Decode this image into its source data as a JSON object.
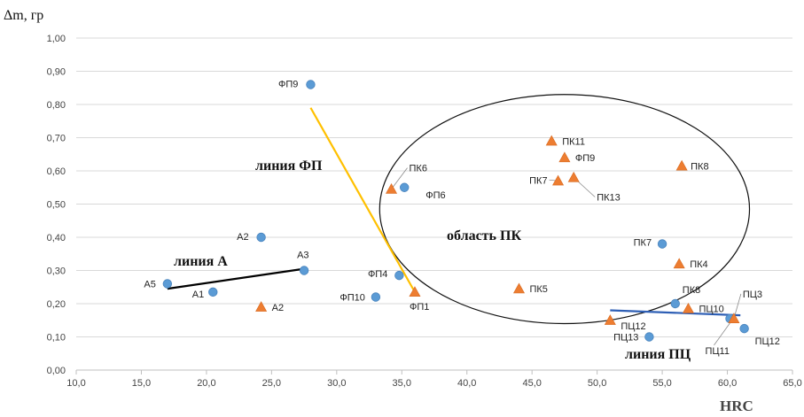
{
  "chart_data": {
    "type": "scatter",
    "ylabel": "Δm, гр",
    "xlabel": "HRC",
    "xlim": [
      10,
      65
    ],
    "ylim": [
      0,
      1
    ],
    "x_ticks": [
      "10,0",
      "15,0",
      "20,0",
      "25,0",
      "30,0",
      "35,0",
      "40,0",
      "45,0",
      "50,0",
      "55,0",
      "60,0",
      "65,0"
    ],
    "y_ticks": [
      "0,00",
      "0,10",
      "0,20",
      "0,30",
      "0,40",
      "0,50",
      "0,60",
      "0,70",
      "0,80",
      "0,90",
      "1,00"
    ],
    "grid": "horizontal",
    "colors": {
      "circle": "#5B9BD5",
      "triangle": "#ED7D31",
      "line_a": "#000000",
      "line_fp": "#FFC000",
      "line_pc": "#2E5FB5"
    },
    "circles": [
      {
        "label": "ФП9",
        "x": 28.0,
        "y": 0.86
      },
      {
        "label": "А2",
        "x": 24.2,
        "y": 0.4
      },
      {
        "label": "А3",
        "x": 27.5,
        "y": 0.3
      },
      {
        "label": "А5",
        "x": 17.0,
        "y": 0.26
      },
      {
        "label": "А1",
        "x": 20.5,
        "y": 0.235
      },
      {
        "label": "ФП6",
        "x": 35.2,
        "y": 0.55
      },
      {
        "label": "ФП4",
        "x": 34.8,
        "y": 0.285
      },
      {
        "label": "ФП10",
        "x": 33.0,
        "y": 0.22
      },
      {
        "label": "ПК7",
        "x": 55.0,
        "y": 0.38
      },
      {
        "label": "ПК8",
        "x": 56.0,
        "y": 0.2
      },
      {
        "label": "ПЦ13",
        "x": 54.0,
        "y": 0.1
      },
      {
        "label": "ПЦ11",
        "x": 60.2,
        "y": 0.155
      },
      {
        "label": "ПЦ12",
        "x": 61.3,
        "y": 0.125
      }
    ],
    "triangles": [
      {
        "label": "А2",
        "x": 24.2,
        "y": 0.19
      },
      {
        "label": "ПК6",
        "x": 34.2,
        "y": 0.545
      },
      {
        "label": "ФП1",
        "x": 36.0,
        "y": 0.235
      },
      {
        "label": "ПК11",
        "x": 46.5,
        "y": 0.69
      },
      {
        "label": "ФП9",
        "x": 47.5,
        "y": 0.64
      },
      {
        "label": "ПК7",
        "x": 47.0,
        "y": 0.57
      },
      {
        "label": "ПК13",
        "x": 48.2,
        "y": 0.58
      },
      {
        "label": "ПК8",
        "x": 56.5,
        "y": 0.615
      },
      {
        "label": "ПК5",
        "x": 44.0,
        "y": 0.245
      },
      {
        "label": "ПК4",
        "x": 56.3,
        "y": 0.32
      },
      {
        "label": "ПЦ12",
        "x": 51.0,
        "y": 0.15
      },
      {
        "label": "ПЦ10",
        "x": 57.0,
        "y": 0.185
      },
      {
        "label": "ПЦ3",
        "x": 60.5,
        "y": 0.155
      }
    ],
    "lines": [
      {
        "name": "линия А",
        "points": [
          [
            17.0,
            0.245
          ],
          [
            27.5,
            0.305
          ]
        ]
      },
      {
        "name": "линия ФП",
        "points": [
          [
            28.0,
            0.79
          ],
          [
            36.0,
            0.235
          ]
        ]
      },
      {
        "name": "линия ПЦ",
        "points": [
          [
            51.0,
            0.18
          ],
          [
            61.0,
            0.165
          ]
        ]
      }
    ],
    "region": {
      "name": "область ПК",
      "cx": 47.5,
      "cy": 0.485,
      "rx_data": 14.2,
      "ry_data": 0.345
    },
    "annotations": [
      "линия ФП",
      "линия А",
      "область ПК",
      "линия ПЦ"
    ]
  }
}
